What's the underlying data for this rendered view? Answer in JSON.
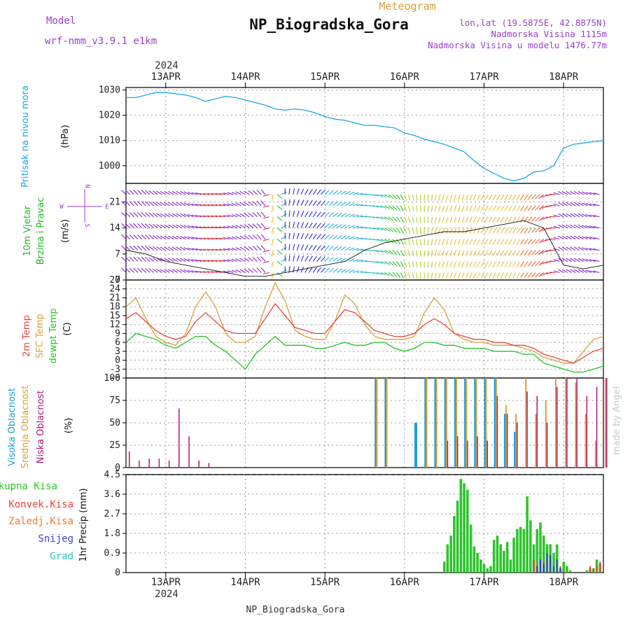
{
  "header": {
    "model_label": "Model",
    "model_value": "wrf-nmm_v3.9.1 e1km",
    "product": "Meteogram",
    "station": "NP_Biogradska_Gora",
    "lonlat": "lon,lat (19.5875E, 42.8875N)",
    "elevation": "Nadmorska Visina 1115m",
    "model_elevation": "Nadmorska Visina u modelu 1476.77m",
    "footer_station": "NP_Biogradska_Gora",
    "credit": "made by Angel"
  },
  "time_axis": {
    "year": "2024",
    "day_labels": [
      "13APR",
      "14APR",
      "15APR",
      "16APR",
      "17APR",
      "18APR"
    ],
    "day_offsets_h": [
      12,
      36,
      60,
      84,
      108,
      132
    ],
    "total_hours": 144
  },
  "colors": {
    "pressure": "#1aa7ec",
    "t2m": "#e8453c",
    "tsfc": "#d6a23c",
    "dewpt": "#22c422",
    "high_cloud": "#1a9ee0",
    "mid_cloud": "#d9a034",
    "low_cloud": "#b0167e",
    "total_precip": "#2ec42e",
    "conv_precip": "#e8453c",
    "frz_precip": "#f07a28",
    "snow": "#4040d0",
    "graupel": "#28c8b8",
    "wind_label": "#22b822",
    "direction": "#9a3fd0"
  },
  "panels": {
    "pressure": {
      "label": "Pritisak na nivou mora",
      "unit": "(hPa)"
    },
    "wind": {
      "label1": "10m Vjetar",
      "label2": "Brzina i Pravac",
      "unit": "(m/s)",
      "compass_n": "N",
      "compass_s": "S",
      "compass_w": "W",
      "compass_e": "E"
    },
    "temp": {
      "label1": "2m Temp",
      "label2": "SFC Temp",
      "label3": "dewpt Temp",
      "unit": "(C)"
    },
    "cloud": {
      "label1": "Visoka Oblacnost",
      "label2": "Srednja Oblacnost",
      "label3": "Niska Oblacnost",
      "unit": "(%)"
    },
    "precip": {
      "label1": "Ukupna Kisa",
      "label2": "Konvek.Kisa",
      "label3": "Zaledj.Kisa",
      "label4": "Snijeg",
      "label5": "Grad",
      "unit": "1hr Precip (mm)"
    }
  },
  "chart_data": [
    {
      "type": "line",
      "title": "Pritisak na nivou mora",
      "ylabel": "(hPa)",
      "ylim": [
        993,
        1031
      ],
      "yticks": [
        1000,
        1010,
        1020,
        1030
      ],
      "grid": true,
      "x": [
        0,
        3,
        6,
        9,
        12,
        15,
        18,
        21,
        24,
        27,
        30,
        33,
        36,
        39,
        42,
        45,
        48,
        51,
        54,
        57,
        60,
        63,
        66,
        69,
        72,
        75,
        78,
        81,
        84,
        87,
        90,
        93,
        96,
        99,
        102,
        105,
        108,
        111,
        114,
        117,
        120,
        123,
        126,
        129,
        132,
        135,
        138,
        141,
        144
      ],
      "series": [
        {
          "name": "Pritisak na nivou mora",
          "values": [
            1027,
            1027,
            1028,
            1029,
            1029,
            1028.5,
            1028,
            1027,
            1025.5,
            1026.5,
            1027.5,
            1027,
            1026,
            1025,
            1024,
            1022.5,
            1022,
            1022.5,
            1022,
            1021,
            1019.5,
            1018.5,
            1018,
            1017,
            1016,
            1016,
            1015.5,
            1015,
            1013,
            1012,
            1010.5,
            1009.5,
            1008.5,
            1007,
            1005.5,
            1002,
            999,
            997,
            995,
            994,
            995,
            997.5,
            998,
            1000,
            1007,
            1008.5,
            1009,
            1009.5,
            1010
          ]
        }
      ]
    },
    {
      "type": "line",
      "title": "10m Vjetar Brzina i Pravac",
      "ylabel": "(m/s)",
      "ylim": [
        0,
        26
      ],
      "yticks": [
        0,
        7,
        14,
        21
      ],
      "grid": true,
      "x": [
        0,
        6,
        12,
        18,
        24,
        30,
        36,
        42,
        48,
        54,
        60,
        66,
        72,
        78,
        84,
        90,
        96,
        102,
        108,
        114,
        120,
        126,
        132,
        138,
        144
      ],
      "series": [
        {
          "name": "10m Vjetar",
          "values": [
            8,
            7,
            5,
            4,
            3,
            2,
            1,
            1,
            2,
            3,
            4,
            5,
            8,
            10,
            11,
            12,
            13,
            13,
            14,
            15,
            16,
            14,
            4,
            3,
            4
          ]
        }
      ],
      "direction_deg": [
        315,
        315,
        300,
        300,
        280,
        280,
        300,
        320,
        0,
        30,
        45,
        60,
        90,
        120,
        160,
        180,
        200,
        200,
        210,
        210,
        210,
        230,
        300,
        300,
        280
      ]
    },
    {
      "type": "line",
      "title": "2m Temp / SFC Temp / dewpt Temp",
      "ylabel": "(C)",
      "ylim": [
        -6,
        27
      ],
      "yticks": [
        -6,
        -3,
        0,
        3,
        6,
        9,
        12,
        15,
        18,
        21,
        24,
        27
      ],
      "grid": true,
      "x": [
        0,
        3,
        6,
        9,
        12,
        15,
        18,
        21,
        24,
        27,
        30,
        33,
        36,
        39,
        42,
        45,
        48,
        51,
        54,
        57,
        60,
        63,
        66,
        69,
        72,
        75,
        78,
        81,
        84,
        87,
        90,
        93,
        96,
        99,
        102,
        105,
        108,
        111,
        114,
        117,
        120,
        123,
        126,
        129,
        132,
        135,
        138,
        141,
        144
      ],
      "series": [
        {
          "name": "2m Temp",
          "values": [
            14,
            16,
            13,
            10,
            8,
            7,
            8,
            13,
            16,
            13,
            10,
            9,
            9,
            9,
            14,
            19,
            15,
            11,
            10,
            9,
            9,
            13,
            17,
            16,
            13,
            10,
            9,
            8,
            8,
            9,
            12,
            14,
            12,
            9,
            8,
            7,
            7,
            6,
            6,
            5,
            5,
            4,
            2,
            1,
            0,
            -1,
            1,
            3,
            4
          ]
        },
        {
          "name": "SFC Temp",
          "values": [
            18,
            21,
            14,
            8,
            6,
            5,
            9,
            18,
            23,
            18,
            9,
            6,
            6,
            8,
            18,
            26,
            20,
            10,
            8,
            7,
            7,
            13,
            22,
            19,
            12,
            8,
            7,
            7,
            7,
            8,
            16,
            21,
            17,
            9,
            7,
            6,
            6,
            5,
            5,
            5,
            4,
            3,
            1,
            0,
            -1,
            -1,
            3,
            7,
            8
          ]
        },
        {
          "name": "dewpt Temp",
          "values": [
            6,
            9,
            8,
            7,
            5,
            4,
            6,
            8,
            8,
            5,
            3,
            0,
            -3,
            2,
            5,
            8,
            5,
            5,
            5,
            4,
            4,
            5,
            6,
            5,
            5,
            6,
            6,
            4,
            3,
            4,
            6,
            6,
            5,
            5,
            4,
            4,
            4,
            3,
            3,
            3,
            2,
            2,
            -1,
            -2,
            -3,
            -4,
            -4,
            -3,
            -2
          ]
        }
      ]
    },
    {
      "type": "bar",
      "title": "Visoka / Srednja / Niska Oblacnost",
      "ylabel": "(%)",
      "ylim": [
        0,
        100
      ],
      "yticks": [
        0,
        25,
        50,
        75,
        100
      ],
      "grid": true,
      "x": [
        0,
        3,
        6,
        9,
        12,
        15,
        18,
        21,
        24,
        27,
        30,
        33,
        36,
        39,
        42,
        45,
        48,
        51,
        54,
        57,
        60,
        63,
        66,
        69,
        72,
        75,
        78,
        81,
        84,
        87,
        90,
        93,
        96,
        99,
        102,
        105,
        108,
        111,
        114,
        117,
        120,
        123,
        126,
        129,
        132,
        135,
        138,
        141,
        144
      ],
      "series": [
        {
          "name": "Visoka Oblacnost",
          "values": [
            0,
            0,
            0,
            0,
            0,
            0,
            0,
            0,
            0,
            0,
            0,
            0,
            0,
            0,
            0,
            0,
            0,
            0,
            0,
            0,
            0,
            0,
            0,
            0,
            0,
            100,
            100,
            0,
            0,
            50,
            100,
            100,
            100,
            100,
            100,
            100,
            100,
            100,
            60,
            40,
            0,
            0,
            0,
            0,
            0,
            0,
            0,
            0,
            0
          ]
        },
        {
          "name": "Srednja Oblacnost",
          "values": [
            0,
            0,
            0,
            0,
            0,
            0,
            0,
            0,
            0,
            0,
            0,
            0,
            0,
            0,
            0,
            0,
            0,
            0,
            0,
            0,
            0,
            0,
            0,
            0,
            0,
            100,
            100,
            0,
            0,
            0,
            100,
            100,
            100,
            100,
            100,
            100,
            100,
            100,
            70,
            60,
            100,
            60,
            75,
            100,
            100,
            95,
            60,
            30,
            100
          ]
        },
        {
          "name": "Niska Oblacnost",
          "values": [
            18,
            8,
            10,
            10,
            8,
            66,
            35,
            8,
            5,
            0,
            0,
            0,
            0,
            0,
            0,
            0,
            0,
            0,
            0,
            0,
            0,
            0,
            0,
            0,
            0,
            0,
            0,
            0,
            0,
            0,
            0,
            0,
            30,
            35,
            30,
            35,
            30,
            80,
            60,
            50,
            85,
            80,
            50,
            90,
            100,
            100,
            80,
            90,
            100
          ]
        }
      ]
    },
    {
      "type": "bar",
      "title": "1hr Precip",
      "ylabel": "1hr Precip (mm)",
      "ylim": [
        0,
        4.5
      ],
      "yticks": [
        0,
        0.9,
        1.8,
        2.7,
        3.6,
        4.5
      ],
      "grid": true,
      "x": [
        96,
        97,
        98,
        99,
        100,
        101,
        102,
        103,
        104,
        105,
        106,
        107,
        108,
        109,
        110,
        111,
        112,
        113,
        114,
        115,
        116,
        117,
        118,
        119,
        120,
        121,
        122,
        123,
        124,
        125,
        126,
        127,
        128,
        129,
        130,
        131,
        132,
        133,
        134,
        135,
        136,
        137,
        138,
        139,
        140,
        141,
        142,
        143
      ],
      "series": [
        {
          "name": "Ukupna Kisa",
          "values": [
            0.5,
            1.3,
            1.7,
            2.6,
            3.3,
            4.3,
            4.1,
            3.8,
            2.2,
            1.2,
            0.9,
            0.6,
            0.4,
            0.2,
            0.3,
            1.5,
            1.7,
            1.3,
            1.0,
            1.4,
            0.6,
            1.6,
            2.0,
            2.1,
            2.0,
            3.5,
            2.4,
            1.3,
            2.0,
            2.3,
            1.7,
            1.3,
            1.3,
            0.9,
            1.3,
            0.2,
            0.5,
            0.3,
            0.1,
            0,
            0,
            0,
            0,
            0.1,
            0.2,
            0.2,
            0.6,
            0.4
          ]
        },
        {
          "name": "Konvek.Kisa",
          "values": [
            0,
            0,
            0,
            0,
            0,
            0,
            0,
            0,
            0,
            0,
            0,
            0,
            0,
            0,
            0,
            0,
            0,
            0,
            0,
            0,
            0,
            0,
            0,
            0,
            0,
            0,
            0,
            0.6,
            0.3,
            0.6,
            0.5,
            0.4,
            0.5,
            0.2,
            0.4,
            0.3,
            0.1,
            0,
            0,
            0,
            0,
            0,
            0,
            0,
            0.3,
            0.2,
            0.3,
            0.5
          ]
        },
        {
          "name": "Zaledj.Kisa",
          "values": [
            0,
            0,
            0,
            0,
            0,
            0,
            0,
            0,
            0,
            0,
            0,
            0,
            0,
            0,
            0,
            0,
            0,
            0,
            0,
            0,
            0,
            0,
            0,
            0,
            0,
            0,
            0,
            0,
            0,
            0,
            0,
            0,
            0,
            0,
            0,
            0,
            0,
            0,
            0,
            0,
            0,
            0,
            0,
            0,
            0,
            0,
            0,
            0
          ]
        },
        {
          "name": "Snijeg",
          "values": [
            0,
            0,
            0,
            0,
            0,
            0,
            0,
            0,
            0,
            0,
            0,
            0,
            0,
            0,
            0,
            0,
            0,
            0,
            0,
            0,
            0,
            0,
            0,
            0,
            0,
            0,
            0,
            0,
            0.3,
            0.6,
            0.4,
            0.9,
            0.8,
            0.3,
            0.6,
            0.2,
            0,
            0,
            0,
            0,
            0,
            0,
            0,
            0,
            0,
            0,
            0,
            0
          ]
        },
        {
          "name": "Grad",
          "values": [
            0,
            0,
            0,
            0,
            0,
            0,
            0,
            0,
            0,
            0,
            0,
            0,
            0,
            0,
            0,
            0,
            0,
            0,
            0,
            0,
            0,
            0,
            0,
            0,
            0,
            0,
            0,
            0,
            0,
            0,
            0,
            0,
            0,
            0,
            0,
            0,
            0,
            0,
            0,
            0,
            0,
            0,
            0,
            0,
            0,
            0,
            0,
            0
          ]
        }
      ]
    }
  ]
}
